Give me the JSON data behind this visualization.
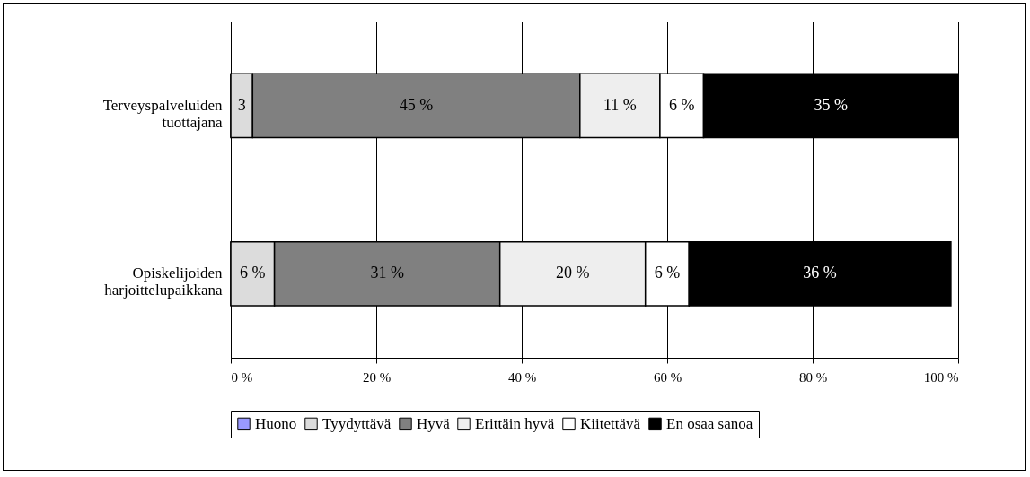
{
  "chart_data": {
    "type": "bar",
    "orientation": "horizontal",
    "stacked": true,
    "categories": [
      "Terveyspalveluiden tuottajana",
      "Opiskelijoiden harjoittelupaikkana"
    ],
    "series": [
      {
        "name": "Huono",
        "color": "#9999ff",
        "values": [
          0,
          0
        ],
        "value_labels": [
          null,
          null
        ]
      },
      {
        "name": "Tyydyttävä",
        "color": "#dcdcdc",
        "values": [
          3,
          6
        ],
        "value_labels": [
          "3",
          "6 %"
        ]
      },
      {
        "name": "Hyvä",
        "color": "#808080",
        "values": [
          45,
          31
        ],
        "value_labels": [
          "45 %",
          "31 %"
        ]
      },
      {
        "name": "Erittäin hyvä",
        "color": "#eeeeee",
        "values": [
          11,
          20
        ],
        "value_labels": [
          "11 %",
          "20 %"
        ]
      },
      {
        "name": "Kiitettävä",
        "color": "#ffffff",
        "values": [
          6,
          6
        ],
        "value_labels": [
          "6 %",
          "6 %"
        ]
      },
      {
        "name": "En osaa sanoa",
        "color": "#000000",
        "values": [
          35,
          36
        ],
        "value_labels": [
          "35 %",
          "36 %"
        ]
      }
    ],
    "xlim": [
      0,
      100
    ],
    "xticks": [
      {
        "value": 0,
        "label": "0 %"
      },
      {
        "value": 20,
        "label": "20 %"
      },
      {
        "value": 40,
        "label": "40 %"
      },
      {
        "value": 60,
        "label": "60 %"
      },
      {
        "value": 80,
        "label": "80 %"
      },
      {
        "value": 100,
        "label": "100 %"
      }
    ],
    "grid": "x",
    "legend": "bottom"
  }
}
